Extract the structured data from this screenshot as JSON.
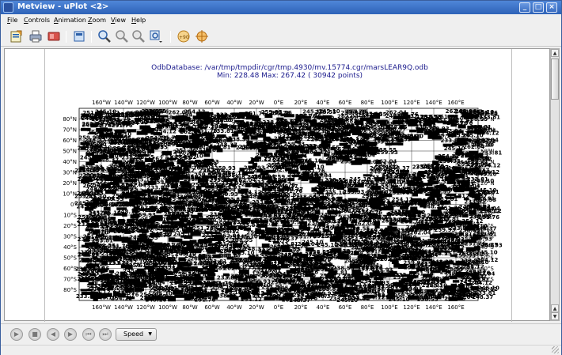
{
  "window": {
    "title": "Metview - uPlot <2>",
    "sticky_glyph": "☃"
  },
  "menu": [
    {
      "key": "F",
      "rest": "ile"
    },
    {
      "key": "C",
      "rest": "ontrols"
    },
    {
      "key": "A",
      "rest": "nimation"
    },
    {
      "key": "Z",
      "rest": "oom"
    },
    {
      "key": "V",
      "rest": "iew"
    },
    {
      "key": "H",
      "rest": "elp"
    }
  ],
  "toolbar_icons": [
    "export-icon",
    "print-icon",
    "pdf-icon",
    "preview-icon",
    "zoom-in-icon",
    "zoom-out-icon",
    "zoom-reset-icon",
    "zoom-area-icon",
    "magnify-area-icon",
    "cursor-data-icon"
  ],
  "plot": {
    "title_line1": "OdbDatabase: /var/tmp/tmpdir/cgr/tmp.4930/mv.15774.cgr/marsLEAR9Q.odb",
    "title_line2": "Min: 228.48  Max: 267.42    ( 30942 points)",
    "lon_labels": [
      "160°W",
      "140°W",
      "120°W",
      "100°W",
      "80°W",
      "60°W",
      "40°W",
      "20°W",
      "0°E",
      "20°E",
      "40°E",
      "60°E",
      "80°E",
      "100°E",
      "120°E",
      "140°E",
      "160°E"
    ],
    "lat_labels_left": [
      "80°N",
      "70°N",
      "60°N",
      "50°N",
      "40°N",
      "30°N",
      "20°N",
      "10°N",
      "0°",
      "10°S",
      "20°S",
      "30°S",
      "40°S",
      "50°S",
      "60°S",
      "70°S",
      "80°S"
    ],
    "lat_labels_right": [
      "80°N",
      "70°N",
      "60°N",
      "50°N",
      "40°N",
      "30°N",
      "20°N",
      "10°N",
      "0°",
      "10°S",
      "20°S",
      "30°S",
      "40°S",
      "50°S",
      "60°S",
      "70°S",
      "80°S"
    ],
    "scatter_text_samples": [
      "251.76",
      "238.55",
      "245.10",
      "259.93",
      "248.37",
      "262.04",
      "233.81",
      "254.12"
    ]
  },
  "bottom": {
    "speed_label": "Speed",
    "controls": [
      "play",
      "stop",
      "back",
      "forward",
      "first",
      "last"
    ]
  }
}
